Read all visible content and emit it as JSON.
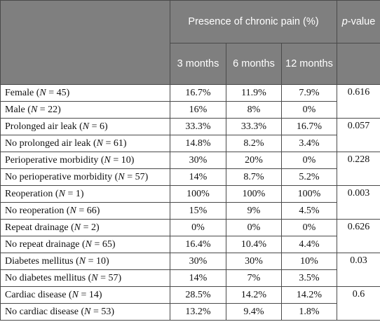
{
  "header": {
    "group_label": "Presence of chronic pain (%)",
    "pvalue_label_prefix": "p",
    "pvalue_label_suffix": "-value",
    "columns": [
      "3 months",
      "6 months",
      "12 months"
    ]
  },
  "groups": [
    {
      "p_value": "0.616",
      "rows": [
        {
          "label": "Female (",
          "n_var": "N",
          "n_rest": " = 45)",
          "values": [
            "16.7%",
            "11.9%",
            "7.9%"
          ]
        },
        {
          "label": "Male (",
          "n_var": "N",
          "n_rest": " = 22)",
          "values": [
            "16%",
            "8%",
            "0%"
          ]
        }
      ]
    },
    {
      "p_value": "0.057",
      "rows": [
        {
          "label": "Prolonged air leak (",
          "n_var": "N",
          "n_rest": " = 6)",
          "values": [
            "33.3%",
            "33.3%",
            "16.7%"
          ]
        },
        {
          "label": "No prolonged air leak (",
          "n_var": "N",
          "n_rest": " = 61)",
          "values": [
            "14.8%",
            "8.2%",
            "3.4%"
          ]
        }
      ]
    },
    {
      "p_value": "0.228",
      "rows": [
        {
          "label": "Perioperative morbidity (",
          "n_var": "N",
          "n_rest": " = 10)",
          "values": [
            "30%",
            "20%",
            "0%"
          ]
        },
        {
          "label": "No perioperative morbidity (",
          "n_var": "N",
          "n_rest": " = 57)",
          "values": [
            "14%",
            "8.7%",
            "5.2%"
          ]
        }
      ]
    },
    {
      "p_value": "0.003",
      "rows": [
        {
          "label": "Reoperation (",
          "n_var": "N",
          "n_rest": " = 1)",
          "values": [
            "100%",
            "100%",
            "100%"
          ]
        },
        {
          "label": "No reoperation (",
          "n_var": "N",
          "n_rest": " = 66)",
          "values": [
            "15%",
            "9%",
            "4.5%"
          ]
        }
      ]
    },
    {
      "p_value": "0.626",
      "rows": [
        {
          "label": "Repeat drainage (",
          "n_var": "N",
          "n_rest": " = 2)",
          "values": [
            "0%",
            "0%",
            "0%"
          ]
        },
        {
          "label": "No repeat drainage (",
          "n_var": "N",
          "n_rest": " = 65)",
          "values": [
            "16.4%",
            "10.4%",
            "4.4%"
          ]
        }
      ]
    },
    {
      "p_value": "0.03",
      "rows": [
        {
          "label": "Diabetes mellitus (",
          "n_var": "N",
          "n_rest": " = 10)",
          "values": [
            "30%",
            "30%",
            "10%"
          ]
        },
        {
          "label": "No diabetes mellitus (",
          "n_var": "N",
          "n_rest": " = 57)",
          "values": [
            "14%",
            "7%",
            "3.5%"
          ]
        }
      ]
    },
    {
      "p_value": "0.6",
      "rows": [
        {
          "label": "Cardiac disease (",
          "n_var": "N",
          "n_rest": " = 14)",
          "values": [
            "28.5%",
            "14.2%",
            "14.2%"
          ]
        },
        {
          "label": "No cardiac disease (",
          "n_var": "N",
          "n_rest": " = 53)",
          "values": [
            "13.2%",
            "9.4%",
            "1.8%"
          ]
        }
      ]
    }
  ]
}
